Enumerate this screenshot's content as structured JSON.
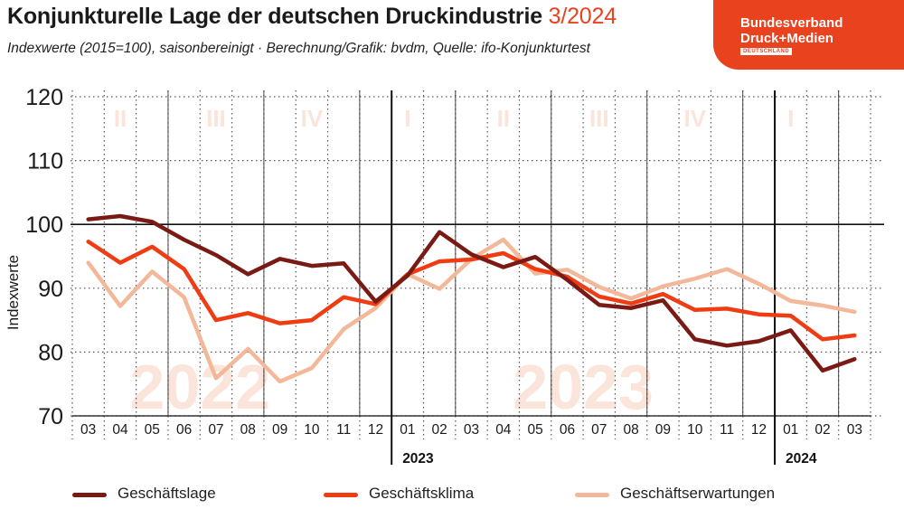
{
  "header": {
    "title": "Konjunkturelle Lage der deutschen Druckindustrie",
    "title_suffix": "3/2024",
    "subtitle": "Indexwerte (2015=100), saisonbereinigt · Berechnung/Grafik: bvdm, Quelle: ifo-Konjunkturtest"
  },
  "logo": {
    "line1": "Bundesverband",
    "line2": "Druck+Medien",
    "line3": "DEUTSCHLAND"
  },
  "colors": {
    "accent": "#e8421e",
    "geschaeftslage": "#7a1a14",
    "geschaeftsklima": "#f03c12",
    "geschaeftserwartungen": "#f3b899",
    "watermark": "#fbe4d9"
  },
  "chart_data": {
    "type": "line",
    "ylabel": "Indexwerte",
    "ylim": [
      70,
      120
    ],
    "yticks": [
      70,
      80,
      90,
      100,
      110,
      120
    ],
    "reference_line": 100,
    "grid": true,
    "categories": [
      "03",
      "04",
      "05",
      "06",
      "07",
      "08",
      "09",
      "10",
      "11",
      "12",
      "01",
      "02",
      "03",
      "04",
      "05",
      "06",
      "07",
      "08",
      "09",
      "10",
      "11",
      "12",
      "01",
      "02",
      "03"
    ],
    "year_labels": [
      {
        "label": "2023",
        "start_index": 10
      },
      {
        "label": "2024",
        "start_index": 22
      }
    ],
    "quarter_labels": [
      {
        "label": "II",
        "start": 0,
        "end": 3
      },
      {
        "label": "III",
        "start": 3,
        "end": 6
      },
      {
        "label": "IV",
        "start": 6,
        "end": 9
      },
      {
        "label": "I",
        "start": 9,
        "end": 12
      },
      {
        "label": "II",
        "start": 12,
        "end": 15
      },
      {
        "label": "III",
        "start": 15,
        "end": 18
      },
      {
        "label": "IV",
        "start": 18,
        "end": 21
      },
      {
        "label": "I",
        "start": 21,
        "end": 24
      }
    ],
    "watermarks": [
      {
        "label": "2022",
        "center_index": 3.5
      },
      {
        "label": "2023",
        "center_index": 15.5
      }
    ],
    "series": [
      {
        "name": "Geschäftslage",
        "color": "#7a1a14",
        "values": [
          100.8,
          101.3,
          100.4,
          97.6,
          95.2,
          92.2,
          94.6,
          93.5,
          93.9,
          87.9,
          92.0,
          98.8,
          95.3,
          93.3,
          94.9,
          91.3,
          87.4,
          86.9,
          88.1,
          82.0,
          81.0,
          81.7,
          83.4,
          77.1,
          78.9
        ]
      },
      {
        "name": "Geschäftsklima",
        "color": "#f03c12",
        "values": [
          97.3,
          94.0,
          96.5,
          93.0,
          85.0,
          86.1,
          84.5,
          85.0,
          88.6,
          87.5,
          92.2,
          94.2,
          94.5,
          95.5,
          93.0,
          91.8,
          88.7,
          87.6,
          89.1,
          86.6,
          86.8,
          85.9,
          85.7,
          82.0,
          82.6
        ]
      },
      {
        "name": "Geschäftserwartungen",
        "color": "#f3b899",
        "values": [
          94.0,
          87.2,
          92.6,
          88.6,
          75.9,
          80.5,
          75.4,
          77.5,
          83.6,
          86.9,
          92.2,
          89.9,
          94.6,
          97.6,
          92.3,
          92.9,
          90.2,
          88.4,
          90.3,
          91.5,
          93.0,
          90.7,
          88.0,
          87.3,
          86.3
        ]
      }
    ]
  },
  "legend": [
    {
      "label": "Geschäftslage",
      "color": "#7a1a14"
    },
    {
      "label": "Geschäftsklima",
      "color": "#f03c12"
    },
    {
      "label": "Geschäftserwartungen",
      "color": "#f3b899"
    }
  ]
}
